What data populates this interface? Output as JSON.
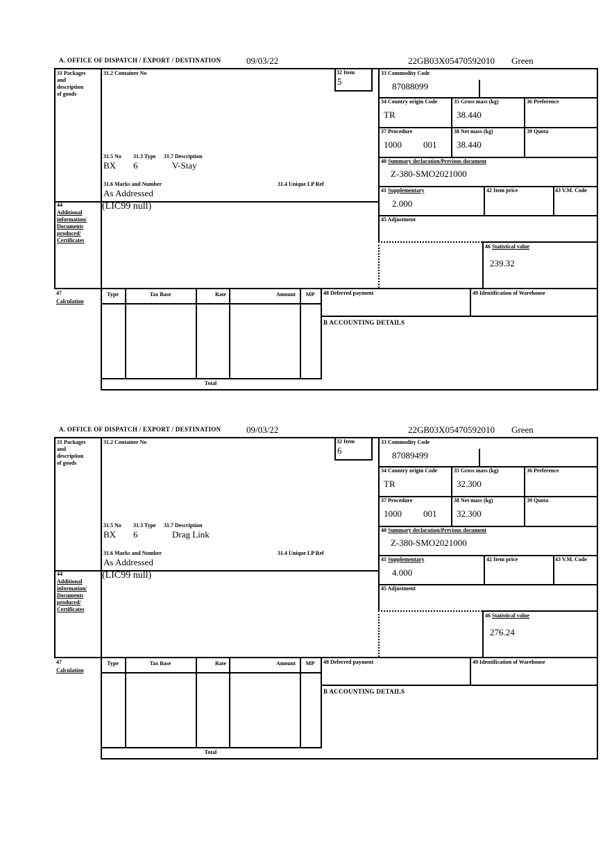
{
  "labels": {
    "office": "A.  OFFICE OF DISPATCH / EXPORT / DESTINATION",
    "box31_lines": [
      "31 Packages",
      "and",
      "description",
      "of goods"
    ],
    "box31_2": "31.2 Container No",
    "box32": "32 Item",
    "box33": "33 Commodity Code",
    "box34": "34 Country origin Code",
    "box35": "35 Gross mass (kg)",
    "box36": "36 Preference",
    "box37": "37 Procedure",
    "box38": "38 Net mass (kg)",
    "box39": "39 Quota",
    "box31_5": "31.5 No",
    "box31_3": "31.3 Type",
    "box31_7": "31.7 Description",
    "box31_6": "31.6 Marks and Number",
    "box31_4": "31.4 Unique LP Ref",
    "box40_num": "40",
    "box40_text": "Summary declaration/Previous document",
    "box41_num": "41",
    "box41_text": "Supplementary",
    "box42": "42 Item price",
    "box43": "43 V.M. Code",
    "box44_num": "44",
    "box44_lines": [
      "Additional",
      "information/",
      "Documents",
      "produced/",
      "Certificates"
    ],
    "box45": "45 Adjustment",
    "box46_num": "46",
    "box46_text": "Statistical value",
    "box47_num": "47",
    "box47_text": "Calculation",
    "col_type": "Type",
    "col_tax_base": "Tax Base",
    "col_rate": "Rate",
    "col_amount": "Amount",
    "col_mp": "MP",
    "box48": "48 Deferred payment",
    "box49": "49 Identification of Warehouse",
    "accounting": "B ACCOUNTING DETAILS",
    "total": "Total"
  },
  "sections": [
    {
      "date": "09/03/22",
      "reference": "22GB03X05470592010",
      "routing": "Green",
      "item": "5",
      "commodity_code": "87088099",
      "country_origin": "TR",
      "gross_mass": "38.440",
      "procedure": "1000",
      "procedure_code": "001",
      "net_mass": "38.440",
      "pkg_no": "BX",
      "pkg_type": "6",
      "pkg_description": "V-Stay",
      "marks": "As Addressed",
      "previous_document": "Z-380-SMO2021000",
      "supplementary": "2.000",
      "additional_info": "(LIC99 null)",
      "statistical_value": "239.32"
    },
    {
      "date": "09/03/22",
      "reference": "22GB03X05470592010",
      "routing": "Green",
      "item": "6",
      "commodity_code": "87089499",
      "country_origin": "TR",
      "gross_mass": "32.300",
      "procedure": "1000",
      "procedure_code": "001",
      "net_mass": "32.300",
      "pkg_no": "BX",
      "pkg_type": "6",
      "pkg_description": "Drag Link",
      "marks": "As Addressed",
      "previous_document": "Z-380-SMO2021000",
      "supplementary": "4.000",
      "additional_info": "(LIC99 null)",
      "statistical_value": "276.24"
    }
  ]
}
